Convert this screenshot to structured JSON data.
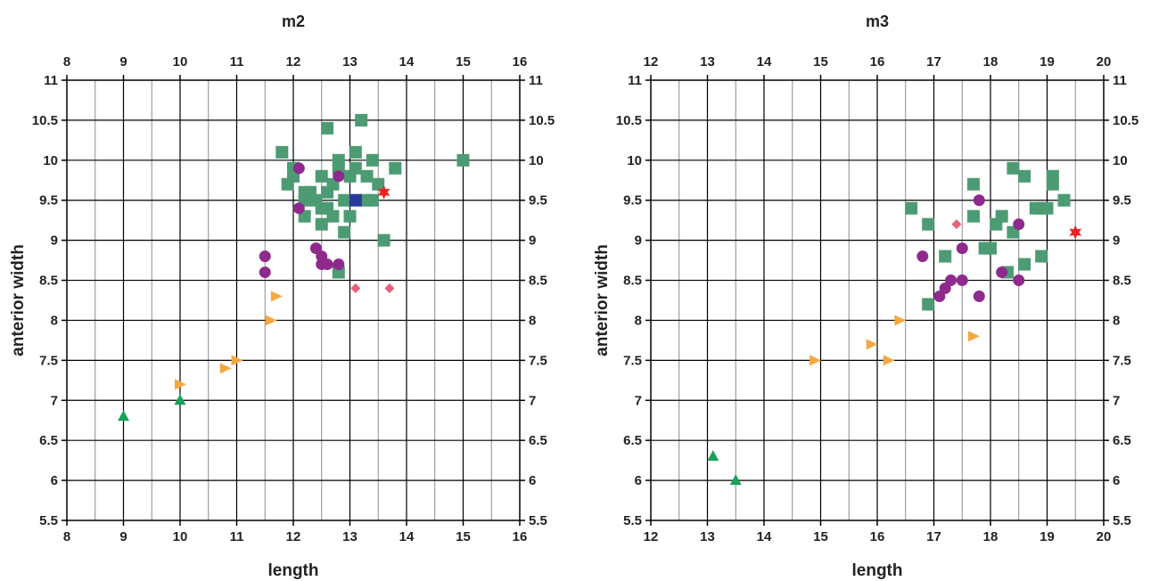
{
  "chart_data": [
    {
      "type": "scatter",
      "title": "m2",
      "xlabel": "length",
      "ylabel": "anterior width",
      "xlim": [
        8,
        16
      ],
      "ylim": [
        5.5,
        11
      ],
      "x_ticks": [
        "8",
        "9",
        "10",
        "11",
        "12",
        "13",
        "14",
        "15",
        "16"
      ],
      "y_ticks": [
        "5.5",
        "6",
        "6.5",
        "7",
        "7.5",
        "8",
        "8.5",
        "9",
        "9.5",
        "10",
        "10.5",
        "11"
      ],
      "grid": true,
      "series": [
        {
          "marker": "square",
          "color": "#4c9b73",
          "points": [
            [
              11.8,
              10.1
            ],
            [
              12.0,
              9.9
            ],
            [
              12.0,
              9.8
            ],
            [
              11.9,
              9.7
            ],
            [
              12.2,
              9.6
            ],
            [
              12.3,
              9.6
            ],
            [
              12.2,
              9.5
            ],
            [
              12.4,
              9.5
            ],
            [
              12.2,
              9.3
            ],
            [
              12.5,
              9.4
            ],
            [
              12.5,
              9.8
            ],
            [
              12.6,
              9.6
            ],
            [
              12.6,
              9.4
            ],
            [
              12.5,
              9.2
            ],
            [
              12.6,
              10.4
            ],
            [
              12.7,
              9.7
            ],
            [
              12.8,
              9.9
            ],
            [
              12.8,
              10.0
            ],
            [
              12.7,
              9.3
            ],
            [
              12.9,
              9.5
            ],
            [
              12.9,
              9.1
            ],
            [
              13.0,
              9.8
            ],
            [
              13.0,
              9.3
            ],
            [
              13.1,
              9.9
            ],
            [
              13.1,
              10.1
            ],
            [
              13.2,
              10.5
            ],
            [
              13.3,
              9.8
            ],
            [
              13.4,
              10.0
            ],
            [
              13.5,
              9.7
            ],
            [
              13.3,
              9.5
            ],
            [
              13.4,
              9.5
            ],
            [
              13.6,
              9.0
            ],
            [
              13.8,
              9.9
            ],
            [
              15.0,
              10.0
            ],
            [
              12.8,
              8.6
            ]
          ]
        },
        {
          "marker": "circle",
          "color": "#8e2a8e",
          "points": [
            [
              12.1,
              9.9
            ],
            [
              12.1,
              9.4
            ],
            [
              12.8,
              9.8
            ],
            [
              12.4,
              8.9
            ],
            [
              12.5,
              8.8
            ],
            [
              12.5,
              8.7
            ],
            [
              12.6,
              8.7
            ],
            [
              12.8,
              8.7
            ],
            [
              11.5,
              8.8
            ],
            [
              11.5,
              8.6
            ]
          ]
        },
        {
          "marker": "square",
          "color": "#2b3a9a",
          "points": [
            [
              13.1,
              9.5
            ]
          ]
        },
        {
          "marker": "star",
          "color": "#ee2222",
          "points": [
            [
              13.6,
              9.6
            ]
          ]
        },
        {
          "marker": "diamond",
          "color": "#e8607a",
          "points": [
            [
              13.1,
              8.4
            ],
            [
              13.7,
              8.4
            ]
          ]
        },
        {
          "marker": "triangle-right",
          "color": "#f5a742",
          "points": [
            [
              11.7,
              8.3
            ],
            [
              11.6,
              8.0
            ],
            [
              11.0,
              7.5
            ],
            [
              10.8,
              7.4
            ],
            [
              10.0,
              7.2
            ]
          ]
        },
        {
          "marker": "triangle-up",
          "color": "#1aa05a",
          "points": [
            [
              9.0,
              6.8
            ],
            [
              10.0,
              7.0
            ]
          ]
        }
      ]
    },
    {
      "type": "scatter",
      "title": "m3",
      "xlabel": "length",
      "ylabel": "anterior width",
      "xlim": [
        12,
        20
      ],
      "ylim": [
        5.5,
        11
      ],
      "x_ticks": [
        "12",
        "13",
        "14",
        "15",
        "16",
        "17",
        "18",
        "19",
        "20"
      ],
      "y_ticks": [
        "5.5",
        "6",
        "6.5",
        "7",
        "7.5",
        "8",
        "8.5",
        "9",
        "9.5",
        "10",
        "10.5",
        "11"
      ],
      "grid": true,
      "series": [
        {
          "marker": "square",
          "color": "#4c9b73",
          "points": [
            [
              16.6,
              9.4
            ],
            [
              16.9,
              9.2
            ],
            [
              17.2,
              8.8
            ],
            [
              16.9,
              8.2
            ],
            [
              17.7,
              9.7
            ],
            [
              17.7,
              9.3
            ],
            [
              17.9,
              8.9
            ],
            [
              18.0,
              8.9
            ],
            [
              18.1,
              9.2
            ],
            [
              18.2,
              9.3
            ],
            [
              18.3,
              8.6
            ],
            [
              18.4,
              9.1
            ],
            [
              18.4,
              9.9
            ],
            [
              18.6,
              9.8
            ],
            [
              18.6,
              8.7
            ],
            [
              18.8,
              9.4
            ],
            [
              18.9,
              9.4
            ],
            [
              19.0,
              9.4
            ],
            [
              18.9,
              8.8
            ],
            [
              19.1,
              9.8
            ],
            [
              19.1,
              9.7
            ],
            [
              19.3,
              9.5
            ]
          ]
        },
        {
          "marker": "circle",
          "color": "#8e2a8e",
          "points": [
            [
              16.8,
              8.8
            ],
            [
              17.8,
              9.5
            ],
            [
              17.5,
              8.9
            ],
            [
              17.3,
              8.5
            ],
            [
              17.5,
              8.5
            ],
            [
              17.2,
              8.4
            ],
            [
              17.1,
              8.3
            ],
            [
              17.8,
              8.3
            ],
            [
              18.2,
              8.6
            ],
            [
              18.5,
              9.2
            ],
            [
              18.5,
              8.5
            ]
          ]
        },
        {
          "marker": "star",
          "color": "#ee2222",
          "points": [
            [
              19.5,
              9.1
            ]
          ]
        },
        {
          "marker": "diamond",
          "color": "#e8607a",
          "points": [
            [
              17.4,
              9.2
            ]
          ]
        },
        {
          "marker": "triangle-right",
          "color": "#f5a742",
          "points": [
            [
              16.4,
              8.0
            ],
            [
              15.9,
              7.7
            ],
            [
              16.2,
              7.5
            ],
            [
              14.9,
              7.5
            ],
            [
              17.7,
              7.8
            ]
          ]
        },
        {
          "marker": "triangle-up",
          "color": "#1aa05a",
          "points": [
            [
              13.1,
              6.3
            ],
            [
              13.5,
              6.0
            ]
          ]
        }
      ]
    }
  ]
}
